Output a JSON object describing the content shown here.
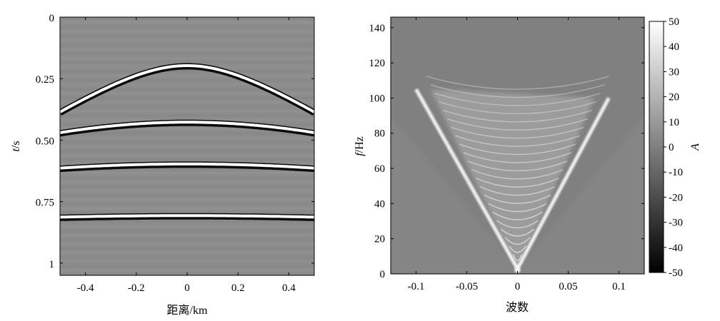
{
  "chart_data": [
    {
      "type": "heatmap",
      "plot": "seismic-gather",
      "xlabel": "距离/km",
      "ylabel_symbol": "t",
      "ylabel_unit": "/s",
      "xlim": [
        -0.5,
        0.5
      ],
      "ylim": [
        0,
        1.05
      ],
      "y_reversed": true,
      "xticks": [
        -0.4,
        -0.2,
        0,
        0.2,
        0.4
      ],
      "xtick_labels": [
        "-0.4",
        "-0.2",
        "0",
        "0.2",
        "0.4"
      ],
      "yticks": [
        0,
        0.25,
        0.5,
        0.75,
        1
      ],
      "ytick_labels": [
        "0",
        "0.25",
        "0.50",
        "0.75",
        "1"
      ],
      "background_color": "#8c8c8c",
      "events": [
        {
          "t0": 0.2,
          "velocity": 1.5
        },
        {
          "t0": 0.43,
          "velocity": 2.55
        },
        {
          "t0": 0.6,
          "velocity": 3.5
        },
        {
          "t0": 0.81,
          "velocity": 5.0
        }
      ]
    },
    {
      "type": "heatmap",
      "plot": "fk-spectrum",
      "xlabel": "波数",
      "ylabel_symbol": "f",
      "ylabel_unit": "/Hz",
      "xlim": [
        -0.125,
        0.125
      ],
      "ylim": [
        0,
        146
      ],
      "xticks": [
        -0.1,
        -0.05,
        0,
        0.05,
        0.1
      ],
      "xtick_labels": [
        "-0.1",
        "-0.05",
        "0",
        "0.05",
        "0.1"
      ],
      "yticks": [
        0,
        20,
        40,
        60,
        80,
        100,
        120,
        140
      ],
      "ytick_labels": [
        "0",
        "20",
        "40",
        "60",
        "80",
        "100",
        "120",
        "140"
      ],
      "background_color": "#808080",
      "v_peak_frequency": 3,
      "v_left_edge": {
        "k": -0.1,
        "f": 105
      },
      "v_right_edge": {
        "k": 0.09,
        "f": 100
      },
      "colorbar": {
        "label": "A",
        "range": [
          -50,
          50
        ],
        "ticks": [
          50,
          40,
          30,
          20,
          10,
          0,
          -10,
          -20,
          -30,
          -40,
          -50
        ],
        "tick_labels": [
          "50",
          "40",
          "30",
          "20",
          "10",
          "0",
          "-10",
          "-20",
          "-30",
          "-40",
          "-50"
        ]
      }
    }
  ]
}
